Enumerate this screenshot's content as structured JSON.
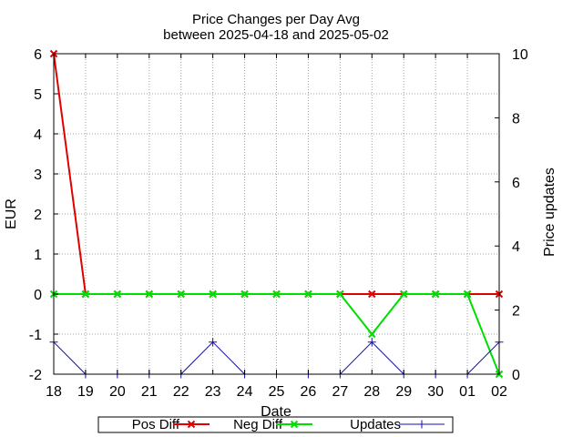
{
  "chart_data": {
    "type": "line",
    "title": "Price Changes per Day Avg",
    "subtitle": "between 2025-04-18 and 2025-05-02",
    "xlabel": "Date",
    "ylabel": "EUR",
    "y2label": "Price updates",
    "categories": [
      "18",
      "19",
      "20",
      "21",
      "22",
      "23",
      "24",
      "25",
      "26",
      "27",
      "28",
      "29",
      "30",
      "01",
      "02"
    ],
    "ylim": [
      -2,
      6
    ],
    "yticks": [
      "-2",
      "-1",
      "0",
      "1",
      "2",
      "3",
      "4",
      "5",
      "6"
    ],
    "y2lim": [
      0,
      10
    ],
    "y2ticks": [
      "0",
      "2",
      "4",
      "6",
      "8",
      "10"
    ],
    "grid": true,
    "legend_position": "bottom",
    "series": [
      {
        "name": "Pos Diff",
        "axis": "y",
        "color": "#e00000",
        "marker": "x",
        "values": [
          6,
          0,
          0,
          0,
          0,
          0,
          0,
          0,
          0,
          0,
          0,
          0,
          0,
          0,
          0
        ]
      },
      {
        "name": "Neg Diff",
        "axis": "y",
        "color": "#00dd00",
        "marker": "x",
        "values": [
          0,
          0,
          0,
          0,
          0,
          0,
          0,
          0,
          0,
          0,
          -1,
          0,
          0,
          0,
          -2
        ]
      },
      {
        "name": "Updates",
        "axis": "y2",
        "color": "#1010b0",
        "marker": "+",
        "values": [
          1,
          0,
          0,
          0,
          0,
          1,
          0,
          0,
          0,
          0,
          1,
          0,
          0,
          0,
          1
        ]
      }
    ]
  }
}
